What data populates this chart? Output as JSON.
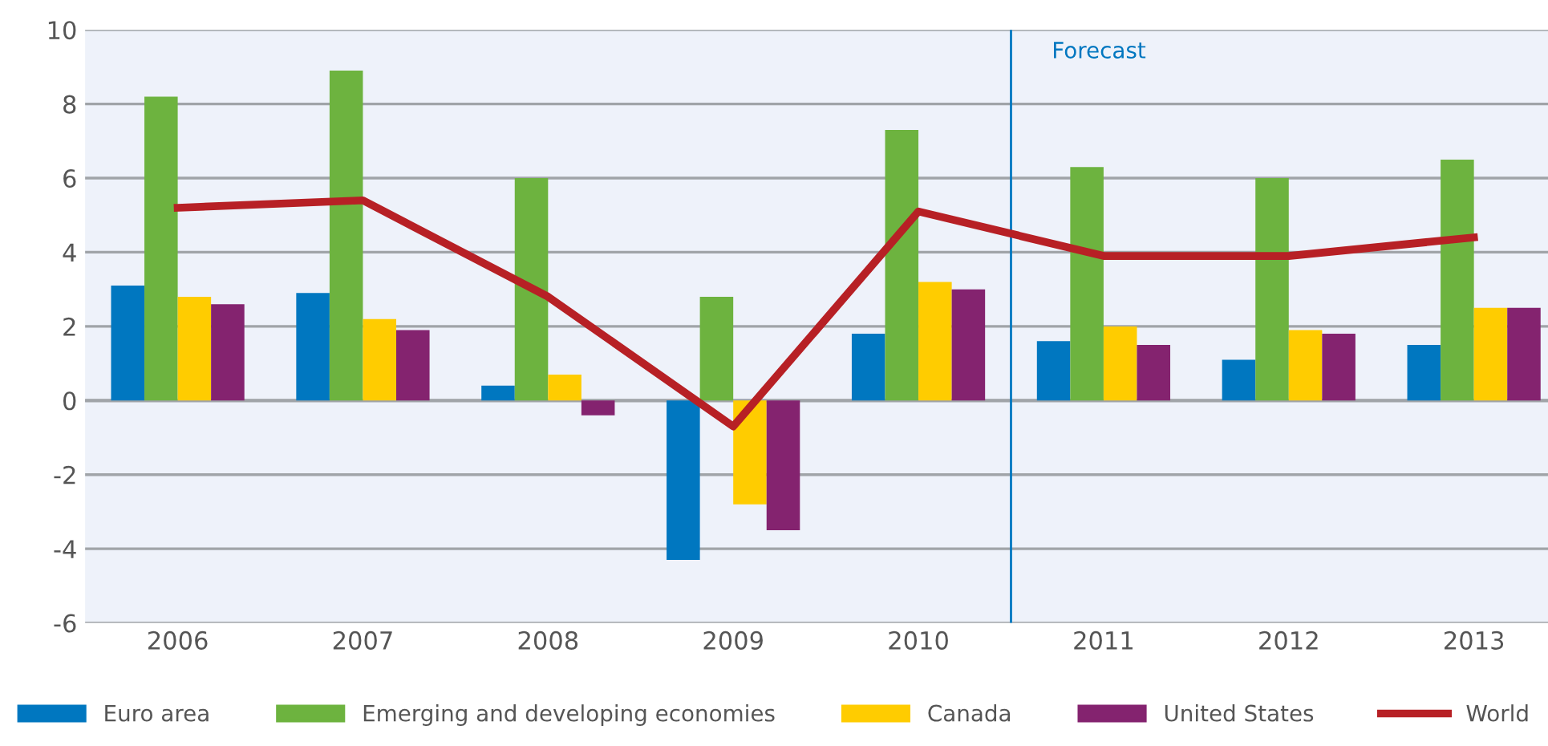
{
  "chart_data": {
    "type": "bar",
    "x": [
      2006,
      2007,
      2008,
      2009,
      2010,
      2011,
      2012,
      2013
    ],
    "series": [
      {
        "name": "Euro area",
        "color": "#0077c0",
        "values": [
          3.1,
          2.9,
          0.4,
          -4.3,
          1.8,
          1.6,
          1.1,
          1.5
        ]
      },
      {
        "name": "Emerging and developing economies",
        "color": "#6db33f",
        "values": [
          8.2,
          8.9,
          6.0,
          2.8,
          7.3,
          6.3,
          6.0,
          6.5
        ]
      },
      {
        "name": "Canada",
        "color": "#ffcc00",
        "values": [
          2.8,
          2.2,
          0.7,
          -2.8,
          3.2,
          2.0,
          1.9,
          2.5
        ]
      },
      {
        "name": "United States",
        "color": "#84236f",
        "values": [
          2.6,
          1.9,
          -0.4,
          -3.5,
          3.0,
          1.5,
          1.8,
          2.5
        ]
      },
      {
        "name": "World",
        "type": "line",
        "color": "#b72025",
        "values": [
          5.2,
          5.4,
          2.8,
          -0.7,
          5.1,
          3.9,
          3.9,
          4.4
        ]
      }
    ],
    "xlim": [
      2005.5,
      2013.4
    ],
    "xticks": [
      2006,
      2007,
      2008,
      2009,
      2010,
      2011,
      2012,
      2013
    ],
    "ylim": [
      -6,
      10
    ],
    "yticks": [
      -6,
      -4,
      -2,
      0,
      2,
      4,
      6,
      8,
      10
    ],
    "grid": "y",
    "legend": "bottom",
    "marker": "none",
    "line_style": "solid",
    "ref_lines": [
      {
        "axis": "x",
        "value": 2010.5,
        "label": "Forecast",
        "color": "#0077c0"
      }
    ]
  }
}
